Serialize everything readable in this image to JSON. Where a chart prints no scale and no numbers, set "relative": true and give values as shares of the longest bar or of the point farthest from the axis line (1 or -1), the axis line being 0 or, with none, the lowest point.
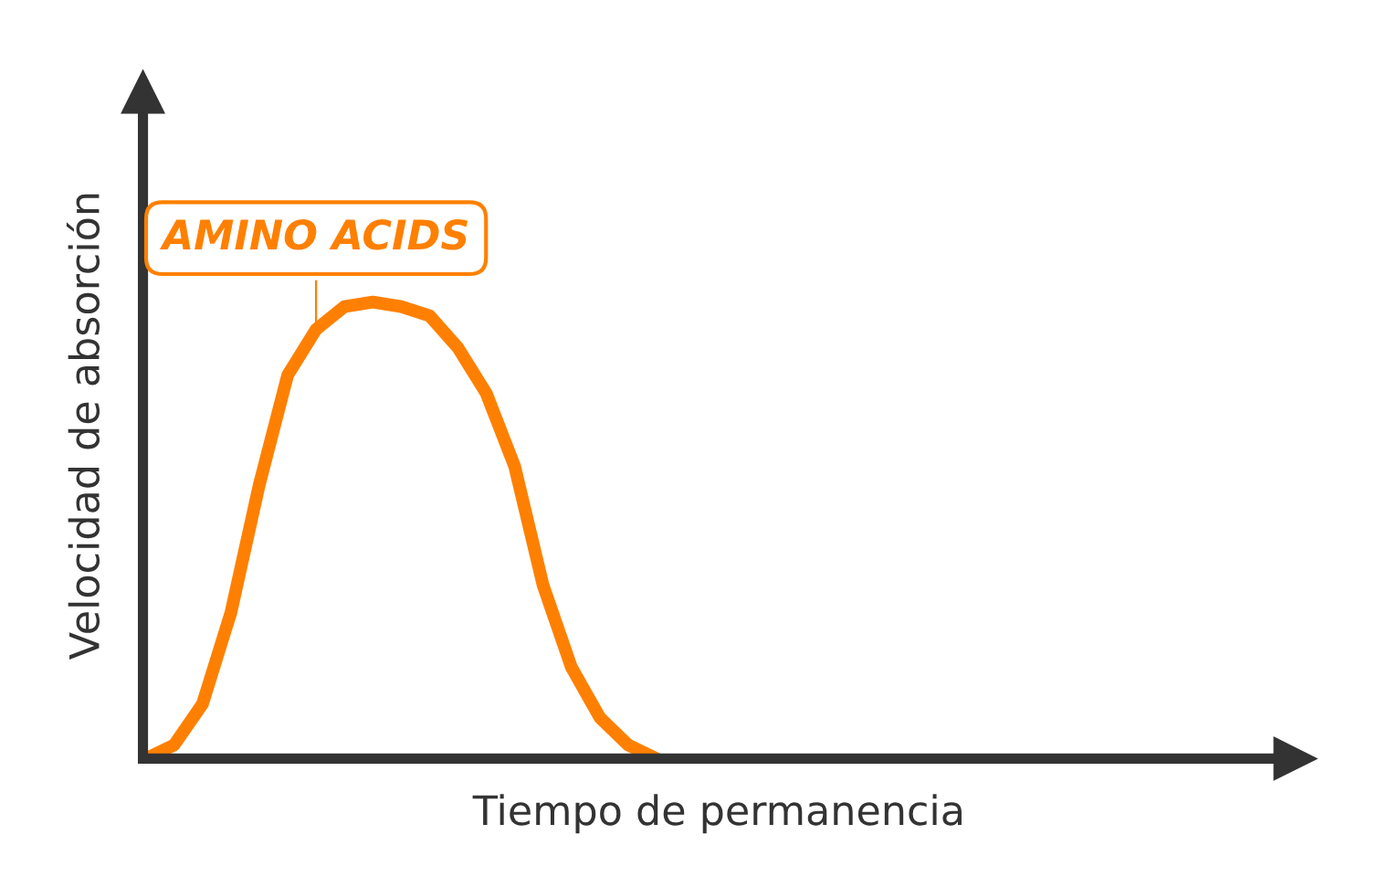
{
  "chart_data": {
    "type": "line",
    "relative": true,
    "xlabel": "Tiempo de permanencia",
    "ylabel": "Velocidad de absorción",
    "categories": [
      null,
      null,
      null,
      null,
      null,
      null,
      null,
      null,
      null,
      null,
      null,
      null,
      null,
      null,
      null,
      null,
      null,
      null,
      null,
      null,
      null,
      null,
      null,
      null,
      null,
      null,
      null,
      null,
      null,
      null,
      null,
      null,
      null,
      null,
      null,
      null,
      null,
      null,
      null,
      null,
      null
    ],
    "series": [
      {
        "name": "AMINO ACIDS",
        "color": "#ff8000",
        "values": [
          0,
          0.03,
          0.12,
          0.32,
          0.6,
          0.84,
          0.94,
          0.99,
          1.0,
          0.99,
          0.97,
          0.9,
          0.8,
          0.64,
          0.38,
          0.2,
          0.09,
          0.03,
          0,
          null,
          null,
          null,
          null,
          null,
          null,
          null,
          null,
          null,
          null,
          null,
          null,
          null,
          null,
          null,
          null,
          null,
          null,
          null,
          null,
          null,
          null
        ]
      }
    ],
    "legend": false,
    "marker": "none",
    "line_style": "solid"
  }
}
